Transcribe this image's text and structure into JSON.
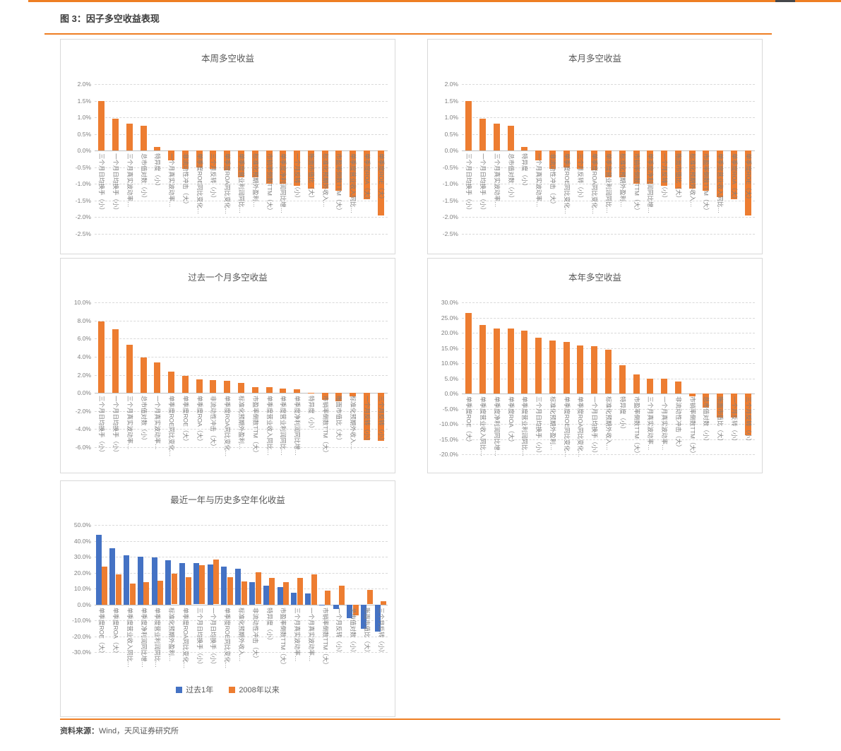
{
  "page": {
    "figure_title": "图 3：因子多空收益表现",
    "source_label": "资料来源：",
    "source_text": "Wind，天风证券研究所",
    "accent_color": "#EE7E23",
    "bar_orange": "#ED7D31",
    "bar_blue": "#4472C4"
  },
  "chart_data": [
    {
      "type": "bar",
      "title": "本周多空收益",
      "bar_color": "#ED7D31",
      "ylim": [
        -2.5,
        2.0
      ],
      "yticks": [
        2.0,
        1.5,
        1.0,
        0.5,
        0.0,
        -0.5,
        -1.0,
        -1.5,
        -2.0,
        -2.5
      ],
      "grid": "dashed",
      "categories": [
        "三个月日均换手（小）",
        "一个月日均换手（小）",
        "三个月真实波动率…",
        "总市值对数（小）",
        "特异度（小）",
        "一个月真实波动率…",
        "非流动性冲击（大）",
        "单季度ROE同比变化…",
        "三个月反转（小）",
        "单季度ROA同比变化…",
        "单季度营业利润同比…",
        "标准化预期外盈利…",
        "市销率倒数TTM（大）",
        "单季度净利润同比增…",
        "一个月反转（小）",
        "账面市值比（大）",
        "标准化预期外收入…",
        "市盈率倒数TTM（大）",
        "单季度营业收入同比…",
        "单季度ROA（大）",
        "单季度ROE（大）"
      ],
      "values": [
        1.5,
        0.97,
        0.82,
        0.75,
        0.11,
        -0.3,
        -0.55,
        -0.5,
        -0.55,
        -0.6,
        -0.8,
        -0.8,
        -1.0,
        -1.0,
        -1.05,
        -1.15,
        -1.15,
        -1.2,
        -1.4,
        -1.45,
        -1.95
      ]
    },
    {
      "type": "bar",
      "title": "本月多空收益",
      "bar_color": "#ED7D31",
      "ylim": [
        -2.5,
        2.0
      ],
      "yticks": [
        2.0,
        1.5,
        1.0,
        0.5,
        0.0,
        -0.5,
        -1.0,
        -1.5,
        -2.0,
        -2.5
      ],
      "grid": "dashed",
      "categories": [
        "三个月日均换手（小）",
        "一个月日均换手（小）",
        "三个月真实波动率…",
        "总市值对数（小）",
        "特异度（小）",
        "一个月真实波动率…",
        "非流动性冲击（大）",
        "单季度ROE同比变化…",
        "三个月反转（小）",
        "单季度ROA同比变化…",
        "单季度营业利润同比…",
        "标准化预期外盈利…",
        "市销率倒数TTM（大）",
        "单季度净利润同比增…",
        "一个月反转（小）",
        "账面市值比（大）",
        "标准化预期外收入…",
        "市盈率倒数TTM（大）",
        "单季度营业收入同比…",
        "单季度ROA（大）",
        "单季度ROE（大）"
      ],
      "values": [
        1.5,
        0.97,
        0.82,
        0.75,
        0.11,
        -0.3,
        -0.55,
        -0.5,
        -0.55,
        -0.6,
        -0.8,
        -0.8,
        -1.0,
        -1.0,
        -1.05,
        -1.15,
        -1.15,
        -1.2,
        -1.4,
        -1.45,
        -1.95
      ]
    },
    {
      "type": "bar",
      "title": "过去一个月多空收益",
      "bar_color": "#ED7D31",
      "ylim": [
        -6.0,
        10.0
      ],
      "yticks": [
        10.0,
        8.0,
        6.0,
        4.0,
        2.0,
        0.0,
        -2.0,
        -4.0,
        -6.0
      ],
      "grid": "dashed",
      "categories": [
        "三个月日均换手（小）",
        "一个月日均换手（小）",
        "三个月真实波动率…",
        "总市值对数（小）",
        "一个月真实波动率…",
        "单季度ROE同比变化…",
        "单季度ROE（大）",
        "单季度ROA（大）",
        "非流动性冲击（大）",
        "单季度ROA同比变化…",
        "标准化预期外盈利…",
        "市盈率倒数TTM（大）",
        "单季度营业收入同比…",
        "单季度营业利润同比…",
        "单季度净利润同比增…",
        "特异度（小）",
        "市销率倒数TTM（大）",
        "账面市值比（大）",
        "标准化预期外收入…",
        "一个月反转（小）",
        "三个月反转（小）"
      ],
      "values": [
        7.9,
        7.0,
        5.3,
        3.9,
        3.35,
        2.35,
        1.9,
        1.5,
        1.45,
        1.35,
        1.1,
        0.65,
        0.65,
        0.5,
        0.4,
        -0.1,
        -0.75,
        -0.9,
        -0.4,
        -5.2,
        -5.3
      ]
    },
    {
      "type": "bar",
      "title": "本年多空收益",
      "bar_color": "#ED7D31",
      "ylim": [
        -20.0,
        30.0
      ],
      "yticks": [
        30.0,
        25.0,
        20.0,
        15.0,
        10.0,
        5.0,
        0.0,
        -5.0,
        -10.0,
        -15.0,
        -20.0
      ],
      "grid": "dashed",
      "categories": [
        "单季度ROE（大）",
        "单季度营业收入同比…",
        "单季度净利润同比增…",
        "单季度ROA（大）",
        "单季度营业利润同比…",
        "三个月日均换手（小）",
        "标准化预期外盈利…",
        "单季度ROE同比变化…",
        "单季度ROA同比变化…",
        "一个月日均换手（小）",
        "标准化预期外收入…",
        "特异度（小）",
        "市盈率倒数TTM（大）",
        "三个月真实波动率…",
        "一个月真实波动率…",
        "非流动性冲击（大）",
        "市销率倒数TTM（大）",
        "总市值对数（小）",
        "账面市值比（大）",
        "一个月反转（小）",
        "三个月反转（小）"
      ],
      "values": [
        26.5,
        22.5,
        21.3,
        21.3,
        20.7,
        18.3,
        17.5,
        16.9,
        15.8,
        15.5,
        14.5,
        9.2,
        6.3,
        4.8,
        4.8,
        4.0,
        -1.0,
        -4.7,
        -7.8,
        -7.8,
        -13.8
      ]
    },
    {
      "type": "bar",
      "title": "最近一年与历史多空年化收益",
      "ylim": [
        -30.0,
        50.0
      ],
      "yticks": [
        50.0,
        40.0,
        30.0,
        20.0,
        10.0,
        0.0,
        -10.0,
        -20.0,
        -30.0
      ],
      "grid": "dashed",
      "legend_position": "bottom",
      "categories": [
        "单季度ROE（大）",
        "单季度ROA（大）",
        "单季度营业收入同比…",
        "单季度净利润同比增…",
        "单季度营业利润同比…",
        "标准化预期外盈利…",
        "单季度ROA同比变化…",
        "三个月日均换手（小）",
        "一个月日均换手（小）",
        "单季度ROE同比变化…",
        "标准化预期外收入…",
        "非流动性冲击（大）",
        "特异度（小）",
        "市盈率倒数TTM（大）",
        "三个月真实波动率…",
        "一个月真实波动率…",
        "市销率倒数TTM（大）",
        "一个月反转（小）",
        "总市值对数（小）",
        "账面市值比（大）",
        "三个月反转（小）"
      ],
      "series": [
        {
          "name": "过去1年",
          "color": "#4472C4",
          "values": [
            44.0,
            35.5,
            31.0,
            30.0,
            29.5,
            28.0,
            26.0,
            25.8,
            25.0,
            24.0,
            22.5,
            14.0,
            12.0,
            11.0,
            7.5,
            7.0,
            -0.5,
            -3.0,
            -8.5,
            -15.5,
            -17.0
          ]
        },
        {
          "name": "2008年以来",
          "color": "#ED7D31",
          "values": [
            24.0,
            19.0,
            13.0,
            14.0,
            15.0,
            19.3,
            17.0,
            24.8,
            28.3,
            17.0,
            14.5,
            20.2,
            16.5,
            14.0,
            16.5,
            19.0,
            8.5,
            12.0,
            -7.0,
            9.3,
            2.0
          ]
        }
      ]
    }
  ]
}
